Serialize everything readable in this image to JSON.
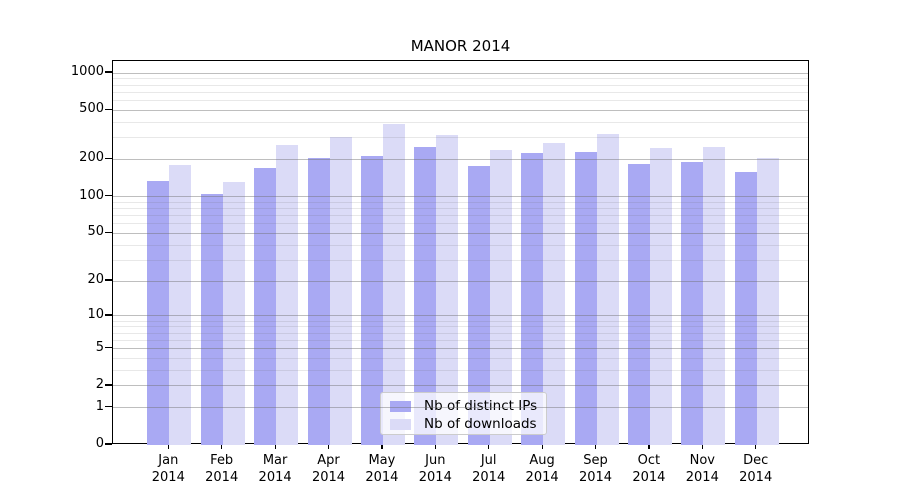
{
  "chart_data": {
    "type": "bar",
    "title": "MANOR 2014",
    "categories": [
      "Jan 2014",
      "Feb 2014",
      "Mar 2014",
      "Apr 2014",
      "May 2014",
      "Jun 2014",
      "Jul 2014",
      "Aug 2014",
      "Sep 2014",
      "Oct 2014",
      "Nov 2014",
      "Dec 2014"
    ],
    "series": [
      {
        "name": "Nb of distinct IPs",
        "color": "#a9a9f3",
        "values": [
          134,
          105,
          172,
          204,
          213,
          250,
          177,
          227,
          230,
          183,
          192,
          158
        ]
      },
      {
        "name": "Nb of downloads",
        "color": "#dbdbf7",
        "values": [
          179,
          131,
          262,
          304,
          385,
          315,
          240,
          271,
          320,
          246,
          251,
          205
        ]
      }
    ],
    "y_axis": {
      "scale": "symlog-log1p",
      "ylim": [
        0,
        1000
      ],
      "major_ticks": [
        0,
        1,
        2,
        5,
        10,
        20,
        50,
        100,
        200,
        500,
        1000
      ],
      "minor_ticks": [
        3,
        4,
        6,
        7,
        8,
        9,
        30,
        40,
        60,
        70,
        80,
        90,
        300,
        400,
        600,
        700,
        800,
        900
      ]
    },
    "grid": "horizontal major+minor gridlines drawn over bars",
    "legend_position": "lower center"
  },
  "colors": {
    "bar_dark": "#a9a9f3",
    "bar_light": "#dbdbf7",
    "grid_major": "rgba(110,110,110,0.45)",
    "grid_minor": "rgba(110,110,110,0.16)",
    "spine": "#000000",
    "legend_border": "#cccccc",
    "background": "#ffffff"
  }
}
